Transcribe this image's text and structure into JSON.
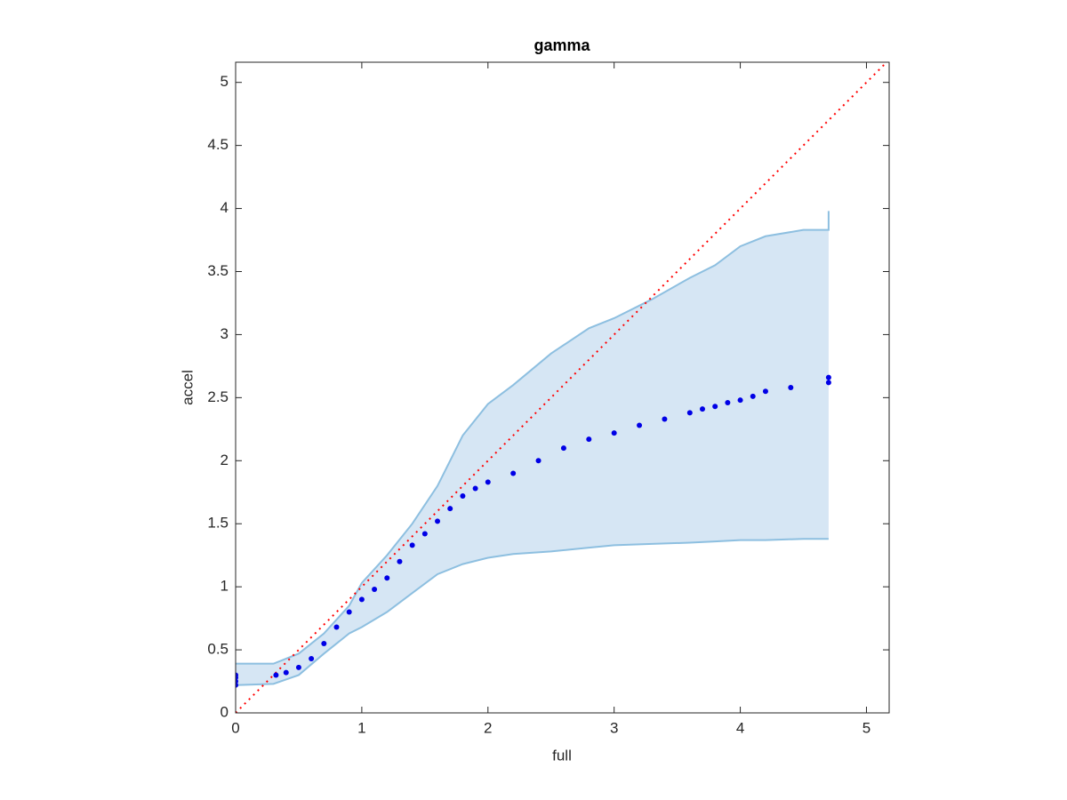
{
  "chart_data": {
    "type": "scatter",
    "title": "gamma",
    "x_label": "full",
    "y_label": "accel",
    "xlim": [
      0,
      5.18
    ],
    "ylim": [
      0,
      5.16
    ],
    "xticks": [
      0,
      1,
      2,
      3,
      4,
      5
    ],
    "yticks": [
      0,
      0.5,
      1,
      1.5,
      2,
      2.5,
      3,
      3.5,
      4,
      4.5,
      5
    ],
    "band": {
      "color": "#d6e6f4",
      "edge_color": "#8dbfe0",
      "x": [
        0,
        0.3,
        0.5,
        0.7,
        0.9,
        1.0,
        1.2,
        1.4,
        1.6,
        1.8,
        2.0,
        2.2,
        2.5,
        2.8,
        3.0,
        3.3,
        3.6,
        3.8,
        4.0,
        4.2,
        4.5,
        4.7,
        4.7
      ],
      "lower": [
        0.22,
        0.23,
        0.3,
        0.47,
        0.63,
        0.68,
        0.8,
        0.95,
        1.1,
        1.18,
        1.23,
        1.26,
        1.28,
        1.31,
        1.33,
        1.34,
        1.35,
        1.36,
        1.37,
        1.37,
        1.38,
        1.38,
        1.38
      ],
      "upper": [
        0.39,
        0.39,
        0.47,
        0.63,
        0.85,
        1.03,
        1.25,
        1.5,
        1.8,
        2.2,
        2.45,
        2.6,
        2.85,
        3.05,
        3.13,
        3.28,
        3.45,
        3.55,
        3.7,
        3.78,
        3.83,
        3.83,
        3.98
      ]
    },
    "points": {
      "color": "#0000e6",
      "x": [
        0,
        0,
        0,
        0,
        0.32,
        0.4,
        0.5,
        0.6,
        0.7,
        0.8,
        0.9,
        1.0,
        1.1,
        1.2,
        1.3,
        1.4,
        1.5,
        1.6,
        1.7,
        1.8,
        1.9,
        2.0,
        2.2,
        2.4,
        2.6,
        2.8,
        3.0,
        3.2,
        3.4,
        3.6,
        3.7,
        3.8,
        3.9,
        4.0,
        4.1,
        4.2,
        4.4,
        4.7,
        4.7
      ],
      "y": [
        0.22,
        0.25,
        0.28,
        0.3,
        0.3,
        0.32,
        0.36,
        0.43,
        0.55,
        0.68,
        0.8,
        0.9,
        0.98,
        1.07,
        1.2,
        1.33,
        1.42,
        1.52,
        1.62,
        1.72,
        1.78,
        1.83,
        1.9,
        2.0,
        2.1,
        2.17,
        2.22,
        2.28,
        2.33,
        2.38,
        2.41,
        2.43,
        2.46,
        2.48,
        2.51,
        2.55,
        2.58,
        2.62,
        2.66
      ]
    },
    "reference_line": {
      "color": "#ff0000",
      "x": [
        0,
        5.16
      ],
      "y": [
        0,
        5.16
      ]
    }
  }
}
